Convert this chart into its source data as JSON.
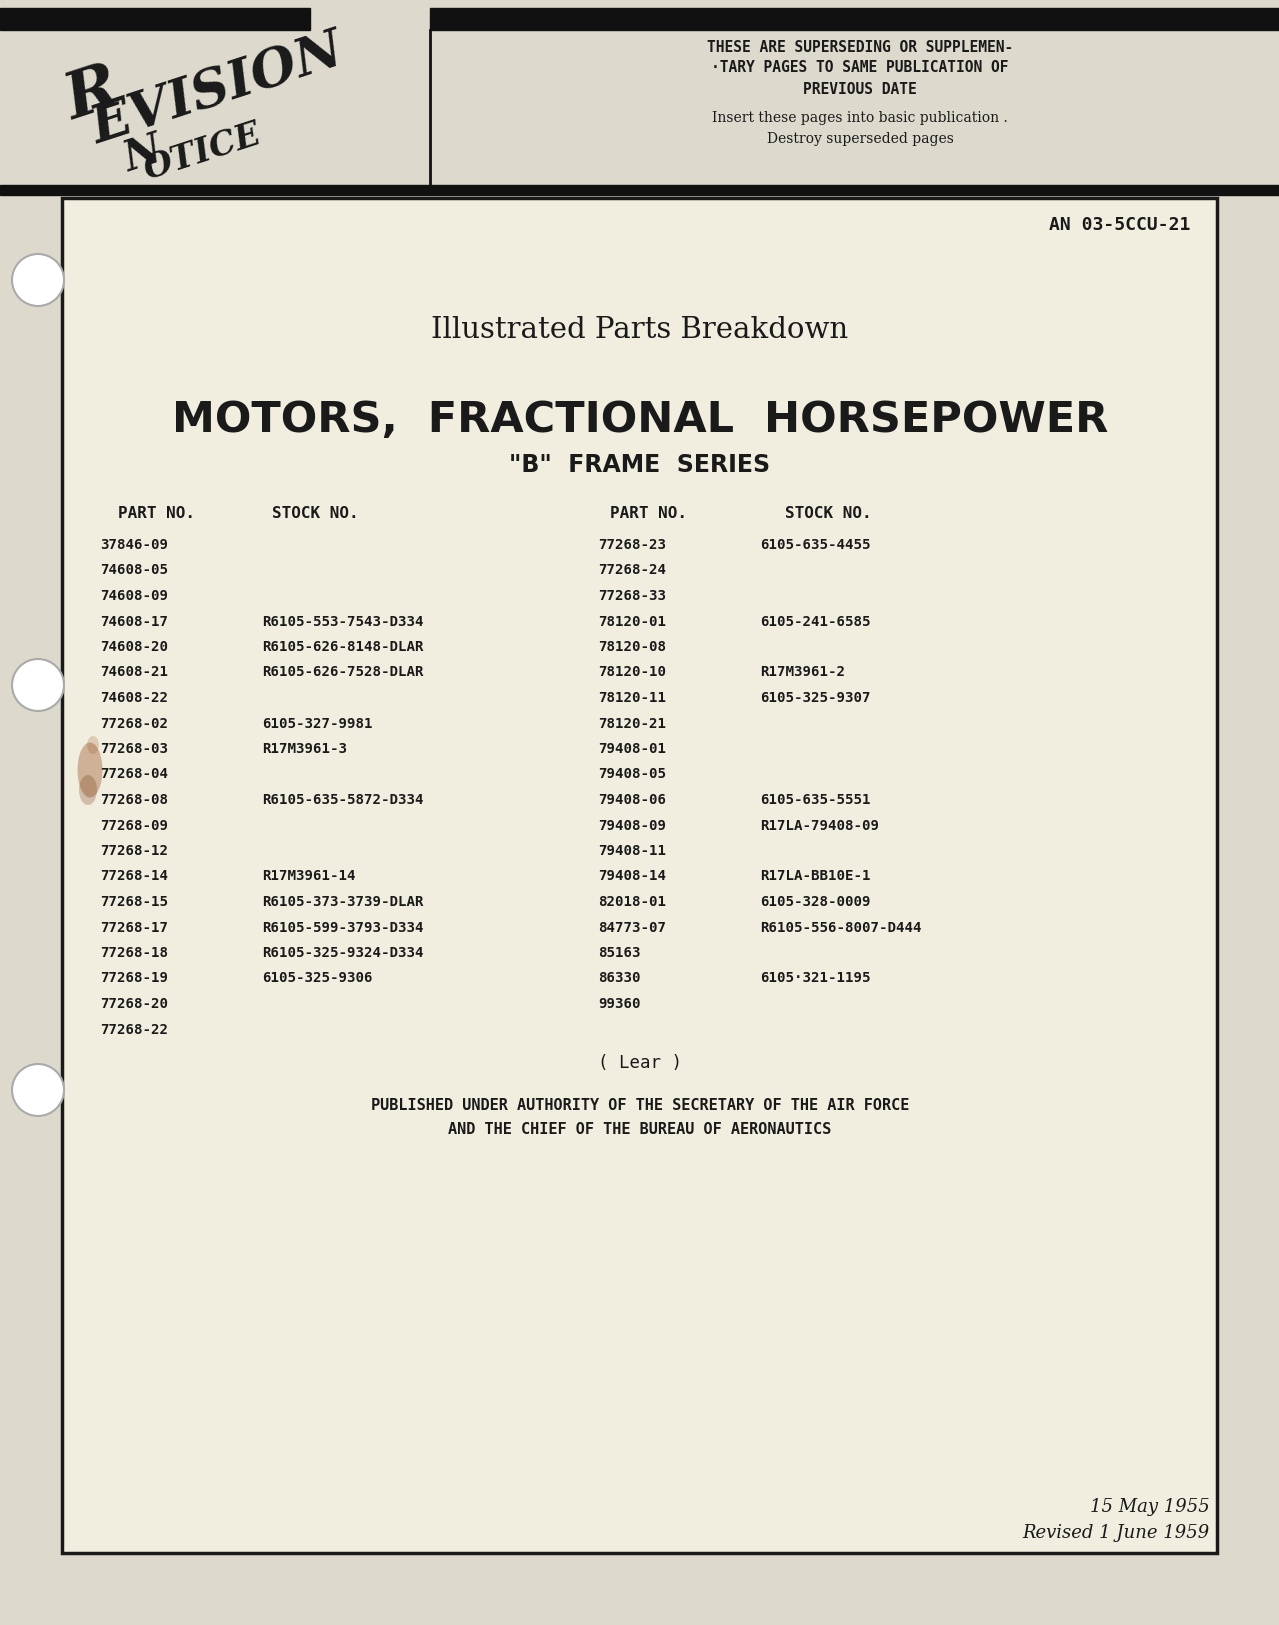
{
  "bg_color": "#ddd9cc",
  "page_bg": "#f0ece0",
  "inner_bg": "#f2eedf",
  "border_color": "#1a1a1a",
  "text_color": "#1a1a1a",
  "revision_line1": "THESE ARE SUPERSEDING OR SUPPLEMEN-",
  "revision_line2": "·TARY PAGES TO SAME PUBLICATION OF",
  "revision_line3": "PREVIOUS DATE",
  "revision_line4": "Insert these pages into basic publication .",
  "revision_line5": "Destroy superseded pages",
  "doc_number": "AN 03-5CCU-21",
  "subtitle": "Illustrated Parts Breakdown",
  "title_line1": "MOTORS,  FRACTIONAL  HORSEPOWER",
  "title_line2": "\"B\"  FRAME  SERIES",
  "col_headers": [
    "PART NO.",
    "STOCK NO.",
    "PART NO.",
    "STOCK NO."
  ],
  "left_col_data": [
    [
      "37846-09",
      ""
    ],
    [
      "74608-05",
      ""
    ],
    [
      "74608-09",
      ""
    ],
    [
      "74608-17",
      "R6105-553-7543-D334"
    ],
    [
      "74608-20",
      "R6105-626-8148-DLAR"
    ],
    [
      "74608-21",
      "R6105-626-7528-DLAR"
    ],
    [
      "74608-22",
      ""
    ],
    [
      "77268-02",
      "6105-327-9981"
    ],
    [
      "77268-03",
      "R17M3961-3"
    ],
    [
      "77268-04",
      ""
    ],
    [
      "77268-08",
      "R6105-635-5872-D334"
    ],
    [
      "77268-09",
      ""
    ],
    [
      "77268-12",
      ""
    ],
    [
      "77268-14",
      "R17M3961-14"
    ],
    [
      "77268-15",
      "R6105-373-3739-DLAR"
    ],
    [
      "77268-17",
      "R6105-599-3793-D334"
    ],
    [
      "77268-18",
      "R6105-325-9324-D334"
    ],
    [
      "77268-19",
      "6105-325-9306"
    ],
    [
      "77268-20",
      ""
    ],
    [
      "77268-22",
      ""
    ]
  ],
  "right_col_data": [
    [
      "77268-23",
      "6105-635-4455"
    ],
    [
      "77268-24",
      ""
    ],
    [
      "77268-33",
      ""
    ],
    [
      "78120-01",
      "6105-241-6585"
    ],
    [
      "78120-08",
      ""
    ],
    [
      "78120-10",
      "R17M3961-2"
    ],
    [
      "78120-11",
      "6105-325-9307"
    ],
    [
      "78120-21",
      ""
    ],
    [
      "79408-01",
      ""
    ],
    [
      "79408-05",
      ""
    ],
    [
      "79408-06",
      "6105-635-5551"
    ],
    [
      "79408-09",
      "R17LA-79408-09"
    ],
    [
      "79408-11",
      ""
    ],
    [
      "79408-14",
      "R17LA-BB10E-1"
    ],
    [
      "82018-01",
      "6105-328-0009"
    ],
    [
      "84773-07",
      "R6105-556-8007-D444"
    ],
    [
      "85163",
      ""
    ],
    [
      "86330",
      "6105·321-1195"
    ],
    [
      "99360",
      ""
    ],
    [
      "",
      ""
    ]
  ],
  "lear_text": "( Lear )",
  "footer_line1": "PUBLISHED UNDER AUTHORITY OF THE SECRETARY OF THE AIR FORCE",
  "footer_line2": "AND THE CHIEF OF THE BUREAU OF AERONAUTICS",
  "date_line1": "15 May 1955",
  "date_line2": "Revised 1 June 1959"
}
